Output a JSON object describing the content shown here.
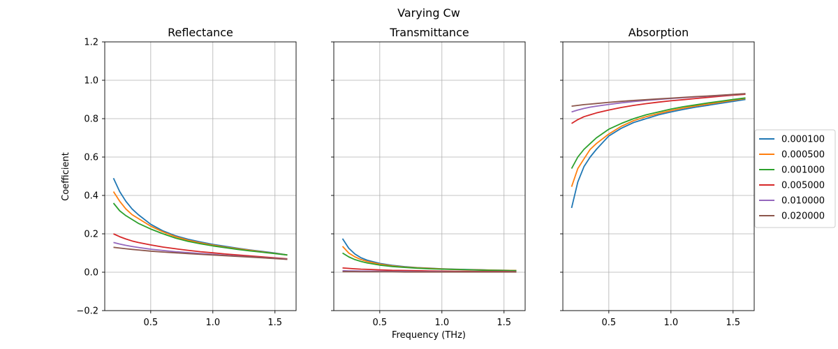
{
  "figure": {
    "suptitle": "Varying Cw",
    "xlabel": "Frequency (THz)",
    "ylabel": "Coefficient"
  },
  "chart_data": [
    {
      "type": "line",
      "title": "Reflectance",
      "xlim": [
        0.13,
        1.67
      ],
      "ylim": [
        -0.2,
        1.2
      ],
      "xticks": [
        0.5,
        1.0,
        1.5
      ],
      "xtick_labels": [
        "0.5",
        "1.0",
        "1.5"
      ],
      "yticks": [
        -0.2,
        0.0,
        0.2,
        0.4,
        0.6,
        0.8,
        1.0,
        1.2
      ],
      "ytick_labels": [
        "−0.2",
        "0.0",
        "0.2",
        "0.4",
        "0.6",
        "0.8",
        "1.0",
        "1.2"
      ],
      "grid": true,
      "x": [
        0.2,
        0.25,
        0.3,
        0.35,
        0.4,
        0.5,
        0.6,
        0.7,
        0.8,
        0.9,
        1.0,
        1.1,
        1.2,
        1.3,
        1.4,
        1.5,
        1.6
      ],
      "series": [
        {
          "name": "0.000100",
          "color": "#1f77b4",
          "values": [
            0.49,
            0.42,
            0.37,
            0.33,
            0.3,
            0.25,
            0.215,
            0.19,
            0.172,
            0.158,
            0.145,
            0.135,
            0.125,
            0.116,
            0.108,
            0.1,
            0.09
          ]
        },
        {
          "name": "0.000500",
          "color": "#ff7f0e",
          "values": [
            0.42,
            0.37,
            0.33,
            0.3,
            0.28,
            0.24,
            0.21,
            0.185,
            0.167,
            0.153,
            0.141,
            0.131,
            0.122,
            0.114,
            0.106,
            0.098,
            0.09
          ]
        },
        {
          "name": "0.001000",
          "color": "#2ca02c",
          "values": [
            0.36,
            0.32,
            0.295,
            0.275,
            0.255,
            0.225,
            0.2,
            0.178,
            0.161,
            0.148,
            0.137,
            0.128,
            0.119,
            0.111,
            0.104,
            0.097,
            0.09
          ]
        },
        {
          "name": "0.005000",
          "color": "#d62728",
          "values": [
            0.2,
            0.185,
            0.173,
            0.163,
            0.155,
            0.142,
            0.131,
            0.122,
            0.114,
            0.107,
            0.101,
            0.095,
            0.09,
            0.085,
            0.08,
            0.075,
            0.07
          ]
        },
        {
          "name": "0.010000",
          "color": "#9467bd",
          "values": [
            0.155,
            0.147,
            0.14,
            0.134,
            0.129,
            0.12,
            0.113,
            0.107,
            0.102,
            0.097,
            0.093,
            0.088,
            0.084,
            0.08,
            0.076,
            0.072,
            0.068
          ]
        },
        {
          "name": "0.020000",
          "color": "#8c564b",
          "values": [
            0.13,
            0.126,
            0.122,
            0.119,
            0.116,
            0.11,
            0.105,
            0.101,
            0.097,
            0.093,
            0.09,
            0.086,
            0.082,
            0.079,
            0.075,
            0.071,
            0.067
          ]
        }
      ]
    },
    {
      "type": "line",
      "title": "Transmittance",
      "xlim": [
        0.13,
        1.67
      ],
      "ylim": [
        -0.2,
        1.2
      ],
      "xticks": [
        0.5,
        1.0,
        1.5
      ],
      "xtick_labels": [
        "0.5",
        "1.0",
        "1.5"
      ],
      "grid": true,
      "x": [
        0.2,
        0.25,
        0.3,
        0.35,
        0.4,
        0.5,
        0.6,
        0.7,
        0.8,
        0.9,
        1.0,
        1.1,
        1.2,
        1.3,
        1.4,
        1.5,
        1.6
      ],
      "series": [
        {
          "name": "0.000100",
          "color": "#1f77b4",
          "values": [
            0.175,
            0.125,
            0.095,
            0.075,
            0.062,
            0.046,
            0.036,
            0.029,
            0.024,
            0.021,
            0.018,
            0.016,
            0.014,
            0.013,
            0.011,
            0.01,
            0.009
          ]
        },
        {
          "name": "0.000500",
          "color": "#ff7f0e",
          "values": [
            0.135,
            0.1,
            0.08,
            0.066,
            0.056,
            0.042,
            0.033,
            0.027,
            0.023,
            0.02,
            0.017,
            0.015,
            0.013,
            0.012,
            0.011,
            0.01,
            0.009
          ]
        },
        {
          "name": "0.001000",
          "color": "#2ca02c",
          "values": [
            0.1,
            0.08,
            0.066,
            0.056,
            0.048,
            0.037,
            0.03,
            0.025,
            0.021,
            0.018,
            0.016,
            0.014,
            0.013,
            0.011,
            0.01,
            0.009,
            0.008
          ]
        },
        {
          "name": "0.005000",
          "color": "#d62728",
          "values": [
            0.022,
            0.02,
            0.018,
            0.016,
            0.015,
            0.012,
            0.01,
            0.009,
            0.008,
            0.007,
            0.006,
            0.005,
            0.005,
            0.004,
            0.004,
            0.004,
            0.003
          ]
        },
        {
          "name": "0.010000",
          "color": "#9467bd",
          "values": [
            0.008,
            0.007,
            0.007,
            0.006,
            0.006,
            0.005,
            0.004,
            0.004,
            0.003,
            0.003,
            0.003,
            0.002,
            0.002,
            0.002,
            0.002,
            0.002,
            0.002
          ]
        },
        {
          "name": "0.020000",
          "color": "#8c564b",
          "values": [
            0.003,
            0.003,
            0.003,
            0.002,
            0.002,
            0.002,
            0.002,
            0.001,
            0.001,
            0.001,
            0.001,
            0.001,
            0.001,
            0.001,
            0.001,
            0.001,
            0.001
          ]
        }
      ]
    },
    {
      "type": "line",
      "title": "Absorption",
      "xlim": [
        0.13,
        1.67
      ],
      "ylim": [
        -0.2,
        1.2
      ],
      "xticks": [
        0.5,
        1.0,
        1.5
      ],
      "xtick_labels": [
        "0.5",
        "1.0",
        "1.5"
      ],
      "grid": true,
      "legend": "outside-right",
      "x": [
        0.2,
        0.25,
        0.3,
        0.35,
        0.4,
        0.5,
        0.6,
        0.7,
        0.8,
        0.9,
        1.0,
        1.1,
        1.2,
        1.3,
        1.4,
        1.5,
        1.6
      ],
      "series": [
        {
          "name": "0.000100",
          "color": "#1f77b4",
          "values": [
            0.335,
            0.47,
            0.55,
            0.6,
            0.64,
            0.71,
            0.75,
            0.78,
            0.8,
            0.82,
            0.835,
            0.848,
            0.86,
            0.87,
            0.88,
            0.89,
            0.9
          ]
        },
        {
          "name": "0.000500",
          "color": "#ff7f0e",
          "values": [
            0.445,
            0.54,
            0.59,
            0.64,
            0.67,
            0.72,
            0.76,
            0.79,
            0.81,
            0.827,
            0.842,
            0.855,
            0.866,
            0.876,
            0.886,
            0.896,
            0.905
          ]
        },
        {
          "name": "0.001000",
          "color": "#2ca02c",
          "values": [
            0.54,
            0.6,
            0.64,
            0.67,
            0.7,
            0.745,
            0.775,
            0.8,
            0.82,
            0.835,
            0.85,
            0.862,
            0.872,
            0.882,
            0.891,
            0.9,
            0.908
          ]
        },
        {
          "name": "0.005000",
          "color": "#d62728",
          "values": [
            0.775,
            0.795,
            0.81,
            0.82,
            0.83,
            0.845,
            0.858,
            0.869,
            0.878,
            0.886,
            0.893,
            0.899,
            0.905,
            0.911,
            0.917,
            0.922,
            0.927
          ]
        },
        {
          "name": "0.010000",
          "color": "#9467bd",
          "values": [
            0.835,
            0.845,
            0.853,
            0.86,
            0.865,
            0.874,
            0.882,
            0.889,
            0.895,
            0.9,
            0.905,
            0.909,
            0.913,
            0.917,
            0.921,
            0.925,
            0.93
          ]
        },
        {
          "name": "0.020000",
          "color": "#8c564b",
          "values": [
            0.865,
            0.869,
            0.873,
            0.876,
            0.879,
            0.885,
            0.89,
            0.895,
            0.899,
            0.903,
            0.907,
            0.911,
            0.915,
            0.918,
            0.922,
            0.926,
            0.93
          ]
        }
      ]
    }
  ]
}
